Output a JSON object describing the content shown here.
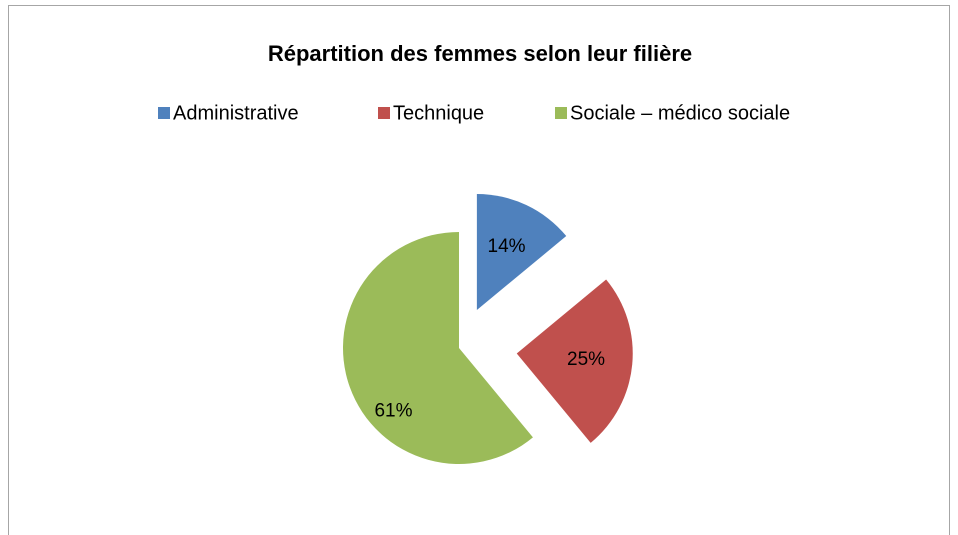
{
  "chart_data": {
    "type": "pie",
    "title": "Répartition des femmes selon leur filière",
    "categories": [
      "Administrative",
      "Technique",
      "Sociale – médico sociale"
    ],
    "values": [
      14,
      25,
      61
    ],
    "value_labels": [
      "14%",
      "25%",
      "61%"
    ],
    "colors": [
      "#4f81bd",
      "#c0504d",
      "#9bbb59"
    ],
    "legend": "top"
  }
}
